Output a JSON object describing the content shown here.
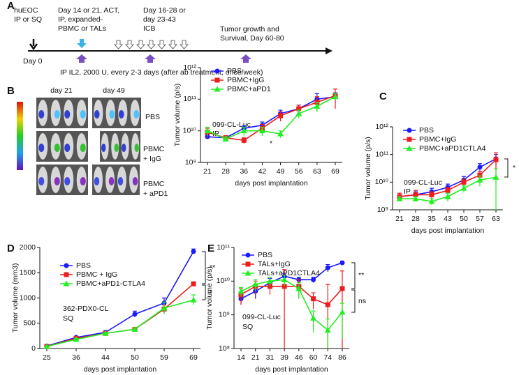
{
  "timeline": {
    "label": "A",
    "start": [
      "huEOC",
      "IP or SQ"
    ],
    "act": [
      "Day 14 or 21, ACT,",
      "IP, expanded-",
      "PBMC or TALs"
    ],
    "icb": [
      "Day 16-28 or",
      "day 23-43",
      "ICB"
    ],
    "end": [
      "Tumor growth and",
      "Survival,  Day 60-80"
    ],
    "day0": "Day 0",
    "il2": "IP  IL2, 2000 U, every 2-3 days (after ab treatment, once/week)"
  },
  "imaging": {
    "label": "B",
    "days": [
      "day 21",
      "day 49"
    ],
    "groups": [
      [
        "PBS"
      ],
      [
        "PBMC",
        "+ IgG"
      ],
      [
        "PBMC",
        "+ aPD1"
      ]
    ]
  },
  "chart_data": [
    {
      "type": "line",
      "log_y": true,
      "xlabel": "days post implantation",
      "ylabel": "Tumor volume (p/s)",
      "categories": [
        "21",
        "28",
        "36",
        "42",
        "49",
        "56",
        "63",
        "69"
      ],
      "ylim": [
        1000000000.0,
        1000000000000.0
      ],
      "yticks": [
        {
          "value": 1000000000.0,
          "label": "10⁹"
        },
        {
          "value": 10000000000.0,
          "label": "10¹⁰"
        },
        {
          "value": 100000000000.0,
          "label": "10¹¹"
        },
        {
          "value": 1000000000000.0,
          "label": "10¹²"
        }
      ],
      "annotations": [
        "099-CL-Luc",
        "IP",
        "*"
      ],
      "series": [
        {
          "name": "PBS",
          "color": "#1a1aff",
          "marker": "circle",
          "values": [
            6500000000.0,
            6000000000.0,
            12000000000.0,
            15000000000.0,
            35000000000.0,
            50000000000.0,
            100000000000.0,
            120000000000.0
          ],
          "errors": [
            1000000000.0,
            1000000000.0,
            3000000000.0,
            4000000000.0,
            10000000000.0,
            15000000000.0,
            50000000000.0,
            40000000000.0
          ]
        },
        {
          "name": "PBMC+IgG",
          "color": "#ee1c1c",
          "marker": "square",
          "values": [
            9000000000.0,
            6000000000.0,
            5000000000.0,
            12000000000.0,
            30000000000.0,
            50000000000.0,
            80000000000.0,
            130000000000.0
          ],
          "errors": [
            3000000000.0,
            1000000000.0,
            1000000000.0,
            4000000000.0,
            10000000000.0,
            15000000000.0,
            40000000000.0,
            80000000000.0
          ]
        },
        {
          "name": "PBMC+aPD1",
          "color": "#22ee22",
          "marker": "triangle",
          "values": [
            10000000000.0,
            5500000000.0,
            10000000000.0,
            10000000000.0,
            8000000000.0,
            35000000000.0,
            60000000000.0,
            120000000000.0
          ],
          "errors": [
            3000000000.0,
            1000000000.0,
            3000000000.0,
            3000000000.0,
            2000000000.0,
            10000000000.0,
            20000000000.0,
            30000000000.0
          ]
        }
      ]
    },
    {
      "type": "line",
      "log_y": true,
      "panel": "C",
      "xlabel": "days post implantation",
      "ylabel": "Tumor volume (p/s)",
      "categories": [
        "21",
        "28",
        "35",
        "43",
        "50",
        "57",
        "63"
      ],
      "ylim": [
        1000000000.0,
        1000000000000.0
      ],
      "yticks": [
        {
          "value": 1000000000.0,
          "label": "10⁹"
        },
        {
          "value": 10000000000.0,
          "label": "10¹⁰"
        },
        {
          "value": 100000000000.0,
          "label": "10¹¹"
        },
        {
          "value": 1000000000000.0,
          "label": "10¹²"
        }
      ],
      "annotations": [
        "099-CL-Luc",
        "IP",
        "*"
      ],
      "series": [
        {
          "name": "PBS",
          "color": "#1a1aff",
          "marker": "circle",
          "values": [
            3000000000.0,
            3500000000.0,
            4500000000.0,
            6500000000.0,
            12000000000.0,
            35000000000.0,
            70000000000.0
          ],
          "errors": [
            1000000000.0,
            1000000000.0,
            1500000000.0,
            2000000000.0,
            4000000000.0,
            12000000000.0,
            30000000000.0
          ]
        },
        {
          "name": "PBMC+IgG",
          "color": "#ee1c1c",
          "marker": "square",
          "values": [
            3000000000.0,
            3500000000.0,
            3500000000.0,
            5000000000.0,
            10000000000.0,
            18000000000.0,
            65000000000.0
          ],
          "errors": [
            1000000000.0,
            1500000000.0,
            1000000000.0,
            1500000000.0,
            3000000000.0,
            6000000000.0,
            50000000000.0
          ]
        },
        {
          "name": "PBMC+aPD1CTLA4",
          "color": "#22ee22",
          "marker": "triangle",
          "values": [
            2500000000.0,
            2500000000.0,
            2000000000.0,
            3000000000.0,
            6000000000.0,
            12000000000.0,
            15000000000.0
          ],
          "errors": [
            500000000.0,
            500000000.0,
            500000000.0,
            1000000000.0,
            1500000000.0,
            5000000000.0,
            15000000000.0
          ]
        }
      ]
    },
    {
      "type": "line",
      "log_y": false,
      "panel": "D",
      "xlabel": "days post implantation",
      "ylabel": "Tumor volume (mm3)",
      "categories": [
        "25",
        "36",
        "44",
        "50",
        "59",
        "69"
      ],
      "ylim": [
        0,
        2000
      ],
      "yticks": [
        0,
        500,
        1000,
        1500,
        2000
      ],
      "annotations": [
        "362-PDX0-CL",
        "SQ",
        "**",
        "*"
      ],
      "series": [
        {
          "name": "PBS",
          "color": "#1a1aff",
          "marker": "circle",
          "values": [
            50,
            220,
            320,
            680,
            900,
            1920
          ],
          "errors": [
            10,
            20,
            30,
            60,
            100,
            50
          ]
        },
        {
          "name": "PBMC + IgG",
          "color": "#ee1c1c",
          "marker": "square",
          "values": [
            40,
            200,
            300,
            380,
            780,
            1280
          ],
          "errors": [
            10,
            20,
            20,
            30,
            80,
            30
          ]
        },
        {
          "name": "PBMC+aPD1-CTLA4",
          "color": "#22ee22",
          "marker": "triangle",
          "values": [
            40,
            180,
            300,
            380,
            800,
            960
          ],
          "errors": [
            10,
            20,
            20,
            30,
            120,
            100
          ]
        }
      ]
    },
    {
      "type": "line",
      "log_y": true,
      "panel": "E",
      "xlabel": "days post implantation",
      "ylabel": "Tumor volume (p/s)",
      "categories": [
        "14",
        "21",
        "31",
        "39",
        "46",
        "60",
        "74",
        "86"
      ],
      "ylim": [
        100000000.0,
        100000000000.0
      ],
      "yticks": [
        {
          "value": 100000000.0,
          "label": "10⁸"
        },
        {
          "value": 1000000000.0,
          "label": "10⁹"
        },
        {
          "value": 10000000000.0,
          "label": "10¹⁰"
        },
        {
          "value": 100000000000.0,
          "label": "10¹¹"
        }
      ],
      "annotations": [
        "099-CL-Luc",
        "SQ",
        "**",
        "ns"
      ],
      "series": [
        {
          "name": "PBS",
          "color": "#1a1aff",
          "marker": "circle",
          "values": [
            3000000000.0,
            5000000000.0,
            9000000000.0,
            14000000000.0,
            11000000000.0,
            11000000000.0,
            25000000000.0,
            35000000000.0
          ],
          "errors": [
            1000000000.0,
            2000000000.0,
            3000000000.0,
            3000000000.0,
            2000000000.0,
            2000000000.0,
            6000000000.0,
            4000000000.0
          ]
        },
        {
          "name": "TALs+IgG",
          "color": "#ee1c1c",
          "marker": "square",
          "values": [
            4000000000.0,
            7000000000.0,
            7000000000.0,
            7000000000.0,
            7000000000.0,
            3000000000.0,
            2000000000.0,
            6000000000.0
          ],
          "errors": [
            2000000000.0,
            3000000000.0,
            3000000000.0,
            15000000000.0,
            4000000000.0,
            1500000000.0,
            6000000000.0,
            14000000000.0
          ]
        },
        {
          "name": "TALs+aPD1CTLA4",
          "color": "#22ee22",
          "marker": "triangle",
          "values": [
            5000000000.0,
            8000000000.0,
            10000000000.0,
            11000000000.0,
            6000000000.0,
            800000000.0,
            350000000.0,
            1200000000.0
          ],
          "errors": [
            1500000000.0,
            3000000000.0,
            3000000000.0,
            4000000000.0,
            3000000000.0,
            500000000.0,
            400000000.0,
            1000000000.0
          ]
        }
      ]
    }
  ]
}
